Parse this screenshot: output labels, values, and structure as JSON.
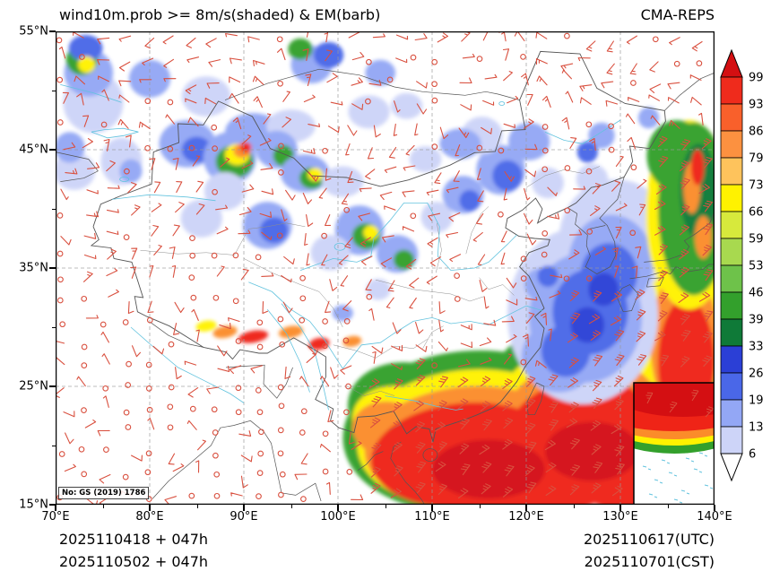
{
  "header": {
    "title": "wind10m.prob >= 8m/s(shaded) & EM(barb)",
    "model": "CMA-REPS"
  },
  "axes": {
    "y_ticks": [
      "55°N",
      "45°N",
      "35°N",
      "25°N",
      "15°N"
    ],
    "x_ticks": [
      "70°E",
      "80°E",
      "90°E",
      "100°E",
      "110°E",
      "120°E",
      "130°E",
      "140°E"
    ]
  },
  "colorbar": {
    "values": [
      "99",
      "93",
      "86",
      "79",
      "73",
      "66",
      "59",
      "53",
      "46",
      "39",
      "33",
      "26",
      "19",
      "13",
      "6"
    ],
    "colors_top_to_bottom": [
      "#d40f12",
      "#ef2b1c",
      "#f9602b",
      "#fc9140",
      "#fec35c",
      "#fff200",
      "#d7e93c",
      "#a8d94f",
      "#6ec24a",
      "#33a02c",
      "#0f7a38",
      "#2b3fd6",
      "#4a67e8",
      "#93a7f5",
      "#cdd4f8",
      "#ffffff"
    ]
  },
  "map_note": {
    "license": "No: GS (2019) 1786"
  },
  "footer": {
    "init_utc": "2025110418 + 047h",
    "init_cst": "2025110502 + 047h",
    "valid_utc": "2025110617(UTC)",
    "valid_cst": "2025110701(CST)"
  },
  "palette": {
    "frame": "#000000",
    "grid": "#9a9a9a",
    "border": "#555555",
    "province": "#8d8d8d",
    "river": "#63c3de",
    "barb": "#d9503f",
    "shade": {
      "lav": "#cdd4f8",
      "peri": "#93a7f5",
      "blue": "#4a67e8",
      "dblue": "#2b3fd6",
      "green": "#33a02c",
      "dgreen": "#0f7a38",
      "yellow": "#fff200",
      "orange": "#fb8c2a",
      "red": "#ef2417",
      "dred": "#d40f12"
    }
  },
  "chart_data": {
    "type": "heatmap",
    "title": "wind10m.prob >= 8m/s(shaded) & EM(barb)",
    "model": "CMA-REPS",
    "field": "Probability (%) of 10 m wind speed >= 8 m/s (shaded) with ensemble-mean wind barbs",
    "x_axis": {
      "tick_labels": [
        "70°E",
        "80°E",
        "90°E",
        "100°E",
        "110°E",
        "120°E",
        "130°E",
        "140°E"
      ],
      "range_deg_east": [
        70,
        140
      ]
    },
    "y_axis": {
      "tick_labels": [
        "55°N",
        "45°N",
        "35°N",
        "25°N",
        "15°N"
      ],
      "range_deg_north": [
        15,
        55
      ]
    },
    "grid": "dashed 10-degree graticule",
    "legend_position": "right vertical colorbar with arrow caps",
    "colorbar_levels_percent": [
      6,
      13,
      19,
      26,
      33,
      39,
      46,
      53,
      59,
      66,
      73,
      79,
      86,
      93,
      99
    ],
    "init_time": "2025110418(UTC) + 047h / 2025110502(CST) + 047h",
    "valid_time": "2025110617(UTC) / 2025110701(CST)",
    "high_probability_regions": [
      "South China Sea, Taiwan and western Pacific: > 93%",
      "Sea east of Japan along 134-140E, 33-46N: 33-79%",
      "East China Sea coastal band 123-131E, 25-37N: 6-39%",
      "Northern Xinjiang / northwest China patches: 6-53% with small 66-99% cores",
      "Northeast China and north China scattered patches: 6-33%",
      "Southern Tibetan Plateau rim streaks: 66-93%"
    ]
  }
}
